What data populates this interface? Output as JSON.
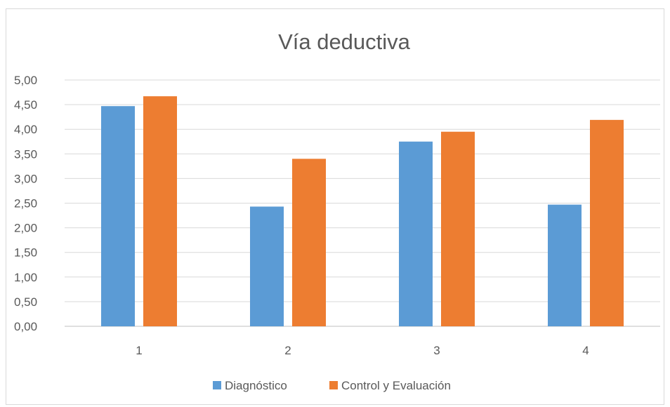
{
  "chart_data": {
    "type": "bar",
    "title": "Vía deductiva",
    "categories": [
      "1",
      "2",
      "3",
      "4"
    ],
    "series": [
      {
        "name": "Diagnóstico",
        "color": "#5b9bd5",
        "values": [
          4.47,
          2.43,
          3.75,
          2.47
        ]
      },
      {
        "name": "Control y Evaluación",
        "color": "#ed7d31",
        "values": [
          4.67,
          3.4,
          3.95,
          4.19
        ]
      }
    ],
    "ylim": [
      0,
      5
    ],
    "y_ticks": [
      "0,00",
      "0,50",
      "1,00",
      "1,50",
      "2,00",
      "2,50",
      "3,00",
      "3,50",
      "4,00",
      "4,50",
      "5,00"
    ],
    "grid": true,
    "legend_position": "bottom",
    "xlabel": "",
    "ylabel": ""
  }
}
